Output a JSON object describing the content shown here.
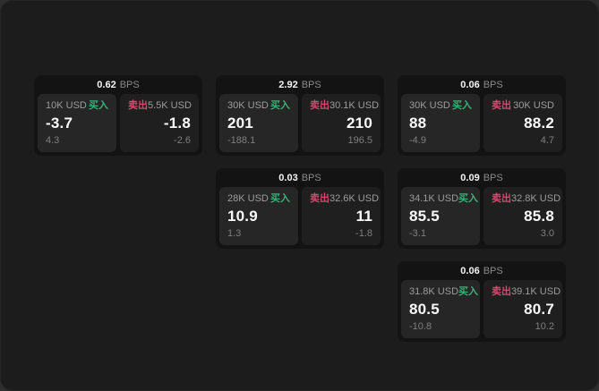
{
  "colors": {
    "page_background": "#1c1c1c",
    "card_background": "#131313",
    "buy_panel_background": "#262626",
    "sell_panel_background": "#1f1f1f",
    "buy_green": "#3fae78",
    "sell_red": "#d1496f",
    "primary_text": "#fafafa",
    "muted_text": "#8a8a8a"
  },
  "cards": [
    {
      "col": 1,
      "row": 1,
      "bps_value": "0.62",
      "bps_unit": "BPS",
      "buy": {
        "amount": "10K USD",
        "tag": "买入",
        "value": "-3.7",
        "sub": "4.3"
      },
      "sell": {
        "tag": "卖出",
        "amount": "5.5K USD",
        "value": "-1.8",
        "sub": "-2.6"
      }
    },
    {
      "col": 2,
      "row": 1,
      "bps_value": "2.92",
      "bps_unit": "BPS",
      "buy": {
        "amount": "30K USD",
        "tag": "买入",
        "value": "201",
        "sub": "-188.1"
      },
      "sell": {
        "tag": "卖出",
        "amount": "30.1K USD",
        "value": "210",
        "sub": "196.5"
      }
    },
    {
      "col": 3,
      "row": 1,
      "bps_value": "0.06",
      "bps_unit": "BPS",
      "buy": {
        "amount": "30K USD",
        "tag": "买入",
        "value": "88",
        "sub": "-4.9"
      },
      "sell": {
        "tag": "卖出",
        "amount": "30K USD",
        "value": "88.2",
        "sub": "4.7"
      }
    },
    {
      "col": 2,
      "row": 2,
      "bps_value": "0.03",
      "bps_unit": "BPS",
      "buy": {
        "amount": "28K USD",
        "tag": "买入",
        "value": "10.9",
        "sub": "1.3"
      },
      "sell": {
        "tag": "卖出",
        "amount": "32.6K USD",
        "value": "11",
        "sub": "-1.8"
      }
    },
    {
      "col": 3,
      "row": 2,
      "bps_value": "0.09",
      "bps_unit": "BPS",
      "buy": {
        "amount": "34.1K USD",
        "tag": "买入",
        "value": "85.5",
        "sub": "-3.1"
      },
      "sell": {
        "tag": "卖出",
        "amount": "32.8K USD",
        "value": "85.8",
        "sub": "3.0"
      }
    },
    {
      "col": 3,
      "row": 3,
      "bps_value": "0.06",
      "bps_unit": "BPS",
      "buy": {
        "amount": "31.8K USD",
        "tag": "买入",
        "value": "80.5",
        "sub": "-10.8"
      },
      "sell": {
        "tag": "卖出",
        "amount": "39.1K USD",
        "value": "80.7",
        "sub": "10.2"
      }
    }
  ]
}
